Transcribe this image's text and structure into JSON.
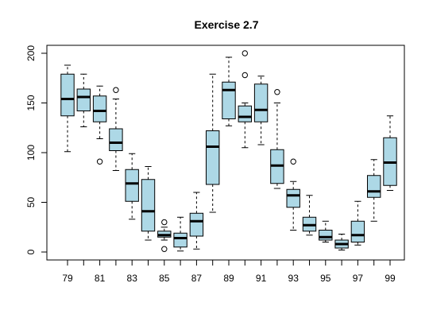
{
  "chart_data": {
    "type": "boxplot",
    "title": "Exercise 2.7",
    "xlabel": "",
    "ylabel": "",
    "categories": [
      "79",
      "80",
      "81",
      "82",
      "83",
      "84",
      "85",
      "86",
      "87",
      "88",
      "89",
      "90",
      "91",
      "92",
      "93",
      "94",
      "95",
      "96",
      "97",
      "98",
      "99"
    ],
    "x_tick_labels": [
      "79",
      "81",
      "83",
      "85",
      "87",
      "89",
      "91",
      "93",
      "95",
      "97",
      "99"
    ],
    "y_ticks": [
      0,
      50,
      100,
      150,
      200
    ],
    "ylim": [
      -8,
      208
    ],
    "grid": false,
    "box_color": "#add8e6",
    "boxes": [
      {
        "category": "79",
        "whisker_low": 101,
        "q1": 137,
        "median": 154,
        "q3": 179,
        "whisker_high": 188,
        "outliers": []
      },
      {
        "category": "80",
        "whisker_low": 126,
        "q1": 142,
        "median": 156,
        "q3": 164,
        "whisker_high": 179,
        "outliers": []
      },
      {
        "category": "81",
        "whisker_low": 114,
        "q1": 131,
        "median": 142,
        "q3": 157,
        "whisker_high": 167,
        "outliers": [
          91
        ]
      },
      {
        "category": "82",
        "whisker_low": 82,
        "q1": 102,
        "median": 110,
        "q3": 124,
        "whisker_high": 154,
        "outliers": [
          163
        ]
      },
      {
        "category": "83",
        "whisker_low": 33,
        "q1": 51,
        "median": 69,
        "q3": 83,
        "whisker_high": 99,
        "outliers": []
      },
      {
        "category": "84",
        "whisker_low": 12,
        "q1": 21,
        "median": 41,
        "q3": 73,
        "whisker_high": 86,
        "outliers": []
      },
      {
        "category": "85",
        "whisker_low": 12,
        "q1": 15,
        "median": 17,
        "q3": 21,
        "whisker_high": 25,
        "outliers": [
          3,
          30
        ]
      },
      {
        "category": "86",
        "whisker_low": 1,
        "q1": 5,
        "median": 14,
        "q3": 19,
        "whisker_high": 35,
        "outliers": []
      },
      {
        "category": "87",
        "whisker_low": 3,
        "q1": 16,
        "median": 31,
        "q3": 39,
        "whisker_high": 60,
        "outliers": []
      },
      {
        "category": "88",
        "whisker_low": 40,
        "q1": 68,
        "median": 106,
        "q3": 122,
        "whisker_high": 179,
        "outliers": []
      },
      {
        "category": "89",
        "whisker_low": 127,
        "q1": 134,
        "median": 163,
        "q3": 171,
        "whisker_high": 196,
        "outliers": []
      },
      {
        "category": "90",
        "whisker_low": 105,
        "q1": 131,
        "median": 136,
        "q3": 147,
        "whisker_high": 150,
        "outliers": [
          178,
          200
        ]
      },
      {
        "category": "91",
        "whisker_low": 108,
        "q1": 131,
        "median": 143,
        "q3": 169,
        "whisker_high": 177,
        "outliers": []
      },
      {
        "category": "92",
        "whisker_low": 64,
        "q1": 69,
        "median": 87,
        "q3": 103,
        "whisker_high": 150,
        "outliers": [
          161
        ]
      },
      {
        "category": "93",
        "whisker_low": 22,
        "q1": 45,
        "median": 57,
        "q3": 63,
        "whisker_high": 71,
        "outliers": [
          91
        ]
      },
      {
        "category": "94",
        "whisker_low": 17,
        "q1": 21,
        "median": 27,
        "q3": 35,
        "whisker_high": 57,
        "outliers": []
      },
      {
        "category": "95",
        "whisker_low": 10,
        "q1": 12,
        "median": 15,
        "q3": 22,
        "whisker_high": 31,
        "outliers": []
      },
      {
        "category": "96",
        "whisker_low": 2,
        "q1": 4,
        "median": 8,
        "q3": 12,
        "whisker_high": 18,
        "outliers": []
      },
      {
        "category": "97",
        "whisker_low": 7,
        "q1": 10,
        "median": 17,
        "q3": 31,
        "whisker_high": 51,
        "outliers": []
      },
      {
        "category": "98",
        "whisker_low": 31,
        "q1": 55,
        "median": 61,
        "q3": 77,
        "whisker_high": 93,
        "outliers": []
      },
      {
        "category": "99",
        "whisker_low": 62,
        "q1": 67,
        "median": 90,
        "q3": 115,
        "whisker_high": 137,
        "outliers": []
      }
    ]
  }
}
